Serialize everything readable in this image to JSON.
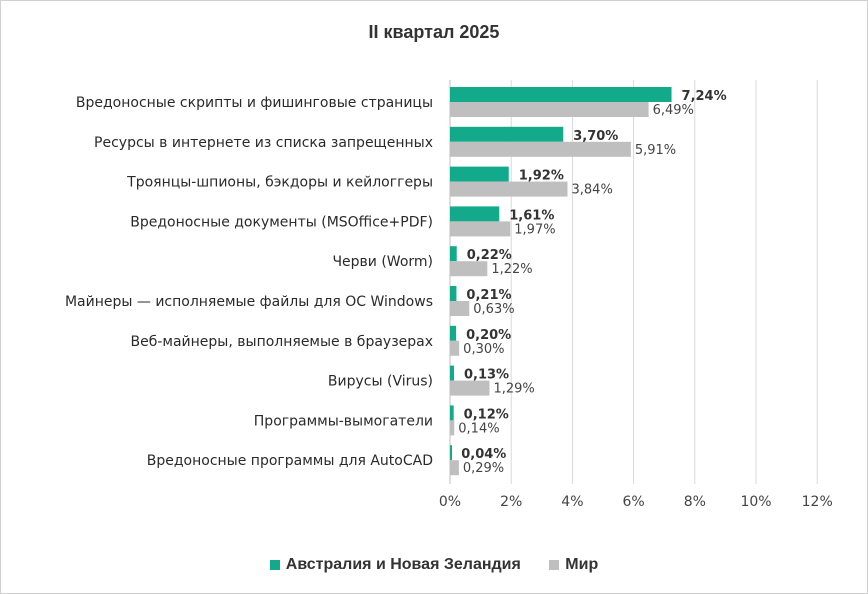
{
  "chart_data": {
    "type": "bar",
    "orientation": "horizontal",
    "title": "II квартал 2025",
    "categories": [
      "Вредоносные скрипты и фишинговые страницы",
      "Ресурсы в интернете из списка запрещенных",
      "Троянцы-шпионы, бэкдоры и кейлоггеры",
      "Вредоносные документы (MSOffice+PDF)",
      "Черви (Worm)",
      "Майнеры — исполняемые файлы для ОС Windows",
      "Веб-майнеры, выполняемые в браузерах",
      "Вирусы (Virus)",
      "Программы-вымогатели",
      "Вредоносные программы для AutoCAD"
    ],
    "series": [
      {
        "name": "Австралия и Новая Зеландия",
        "color": "#13a98b",
        "values": [
          7.24,
          3.7,
          1.92,
          1.61,
          0.22,
          0.21,
          0.2,
          0.13,
          0.12,
          0.04
        ],
        "labels": [
          "7,24%",
          "3,70%",
          "1,92%",
          "1,61%",
          "0,22%",
          "0,21%",
          "0,20%",
          "0,13%",
          "0,12%",
          "0,04%"
        ]
      },
      {
        "name": "Мир",
        "color": "#bfbfbf",
        "values": [
          6.49,
          5.91,
          3.84,
          1.97,
          1.22,
          0.63,
          0.3,
          1.29,
          0.14,
          0.29
        ],
        "labels": [
          "6,49%",
          "5,91%",
          "3,84%",
          "1,97%",
          "1,22%",
          "0,63%",
          "0,30%",
          "1,29%",
          "0,14%",
          "0,29%"
        ]
      }
    ],
    "xlim": [
      0,
      12
    ],
    "xticks": [
      0,
      2,
      4,
      6,
      8,
      10,
      12
    ],
    "xtick_labels": [
      "0%",
      "2%",
      "4%",
      "6%",
      "8%",
      "10%",
      "12%"
    ],
    "grid": true,
    "legend_position": "bottom"
  }
}
